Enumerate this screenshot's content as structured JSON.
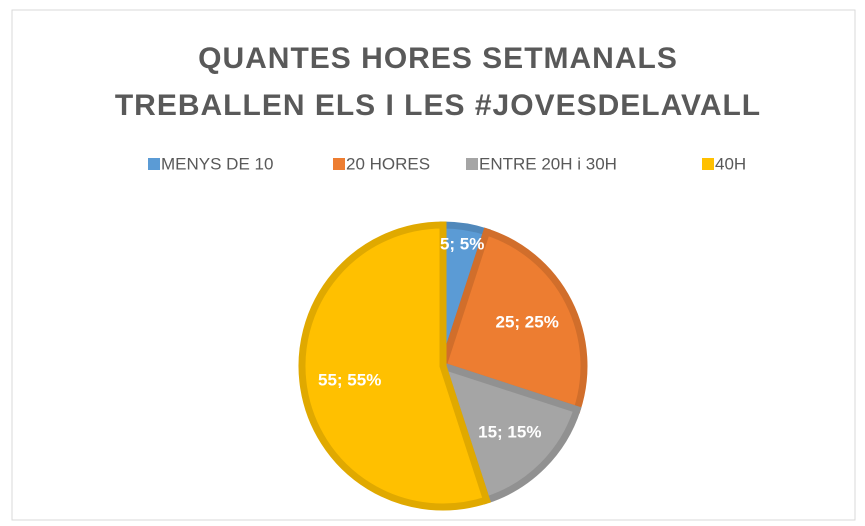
{
  "chart_data": {
    "type": "pie",
    "title": [
      "QUANTES HORES SETMANALS",
      "TREBALLEN ELS I LES #JOVESDELAVALL"
    ],
    "categories": [
      "MENYS DE 10",
      "20 HORES",
      "ENTRE 20H i 30H",
      "40H"
    ],
    "values": [
      5,
      25,
      15,
      55
    ],
    "value_labels": [
      "5; 5%",
      "25; 25%",
      "15; 15%",
      "55; 55%"
    ],
    "colors": [
      "#5b9bd5",
      "#ed7d31",
      "#a5a5a5",
      "#ffc000"
    ],
    "legend": "top"
  }
}
